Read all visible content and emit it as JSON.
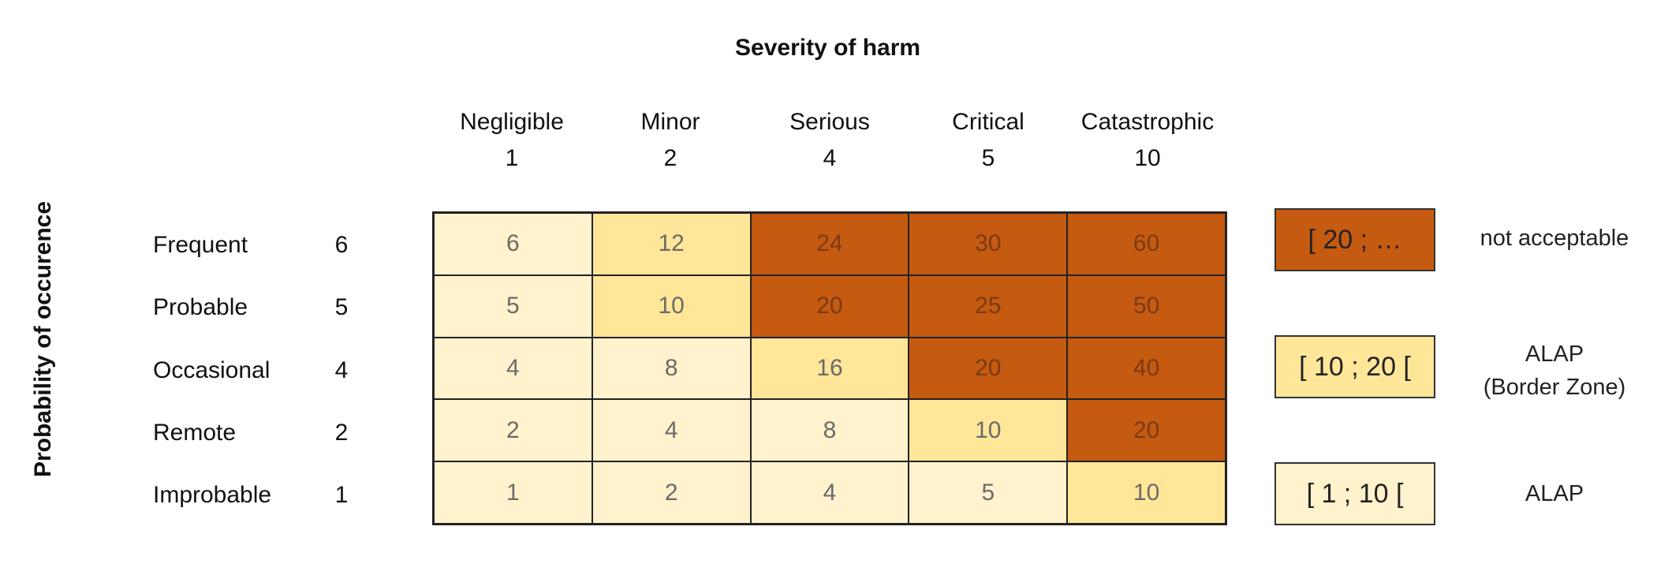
{
  "title": "Severity of harm",
  "y_axis_label": "Probability of occurence",
  "severity": [
    {
      "name": "Negligible",
      "value": "1"
    },
    {
      "name": "Minor",
      "value": "2"
    },
    {
      "name": "Serious",
      "value": "4"
    },
    {
      "name": "Critical",
      "value": "5"
    },
    {
      "name": "Catastrophic",
      "value": "10"
    }
  ],
  "probability": [
    {
      "name": "Frequent",
      "value": "6"
    },
    {
      "name": "Probable",
      "value": "5"
    },
    {
      "name": "Occasional",
      "value": "4"
    },
    {
      "name": "Remote",
      "value": "2"
    },
    {
      "name": "Improbable",
      "value": "1"
    }
  ],
  "matrix": [
    [
      {
        "value": "6",
        "zone": "acceptable"
      },
      {
        "value": "12",
        "zone": "alap_border"
      },
      {
        "value": "24",
        "zone": "not_acceptable"
      },
      {
        "value": "30",
        "zone": "not_acceptable"
      },
      {
        "value": "60",
        "zone": "not_acceptable"
      }
    ],
    [
      {
        "value": "5",
        "zone": "acceptable"
      },
      {
        "value": "10",
        "zone": "alap_border"
      },
      {
        "value": "20",
        "zone": "not_acceptable"
      },
      {
        "value": "25",
        "zone": "not_acceptable"
      },
      {
        "value": "50",
        "zone": "not_acceptable"
      }
    ],
    [
      {
        "value": "4",
        "zone": "acceptable"
      },
      {
        "value": "8",
        "zone": "acceptable"
      },
      {
        "value": "16",
        "zone": "alap_border"
      },
      {
        "value": "20",
        "zone": "not_acceptable"
      },
      {
        "value": "40",
        "zone": "not_acceptable"
      }
    ],
    [
      {
        "value": "2",
        "zone": "acceptable"
      },
      {
        "value": "4",
        "zone": "acceptable"
      },
      {
        "value": "8",
        "zone": "acceptable"
      },
      {
        "value": "10",
        "zone": "alap_border"
      },
      {
        "value": "20",
        "zone": "not_acceptable"
      }
    ],
    [
      {
        "value": "1",
        "zone": "acceptable"
      },
      {
        "value": "2",
        "zone": "acceptable"
      },
      {
        "value": "4",
        "zone": "acceptable"
      },
      {
        "value": "5",
        "zone": "acceptable"
      },
      {
        "value": "10",
        "zone": "alap_border"
      }
    ]
  ],
  "legend": [
    {
      "range": "[ 20 ; …",
      "label_line1": "not acceptable",
      "label_line2": "",
      "zone": "not_acceptable"
    },
    {
      "range": "[ 10 ; 20 [",
      "label_line1": "ALAP",
      "label_line2": "(Border Zone)",
      "zone": "alap_border"
    },
    {
      "range": "[ 1 ; 10 [",
      "label_line1": "ALAP",
      "label_line2": "",
      "zone": "acceptable"
    }
  ],
  "colors": {
    "acceptable": "#FFF2CC",
    "alap_border": "#FFE699",
    "not_acceptable": "#C55A11"
  }
}
